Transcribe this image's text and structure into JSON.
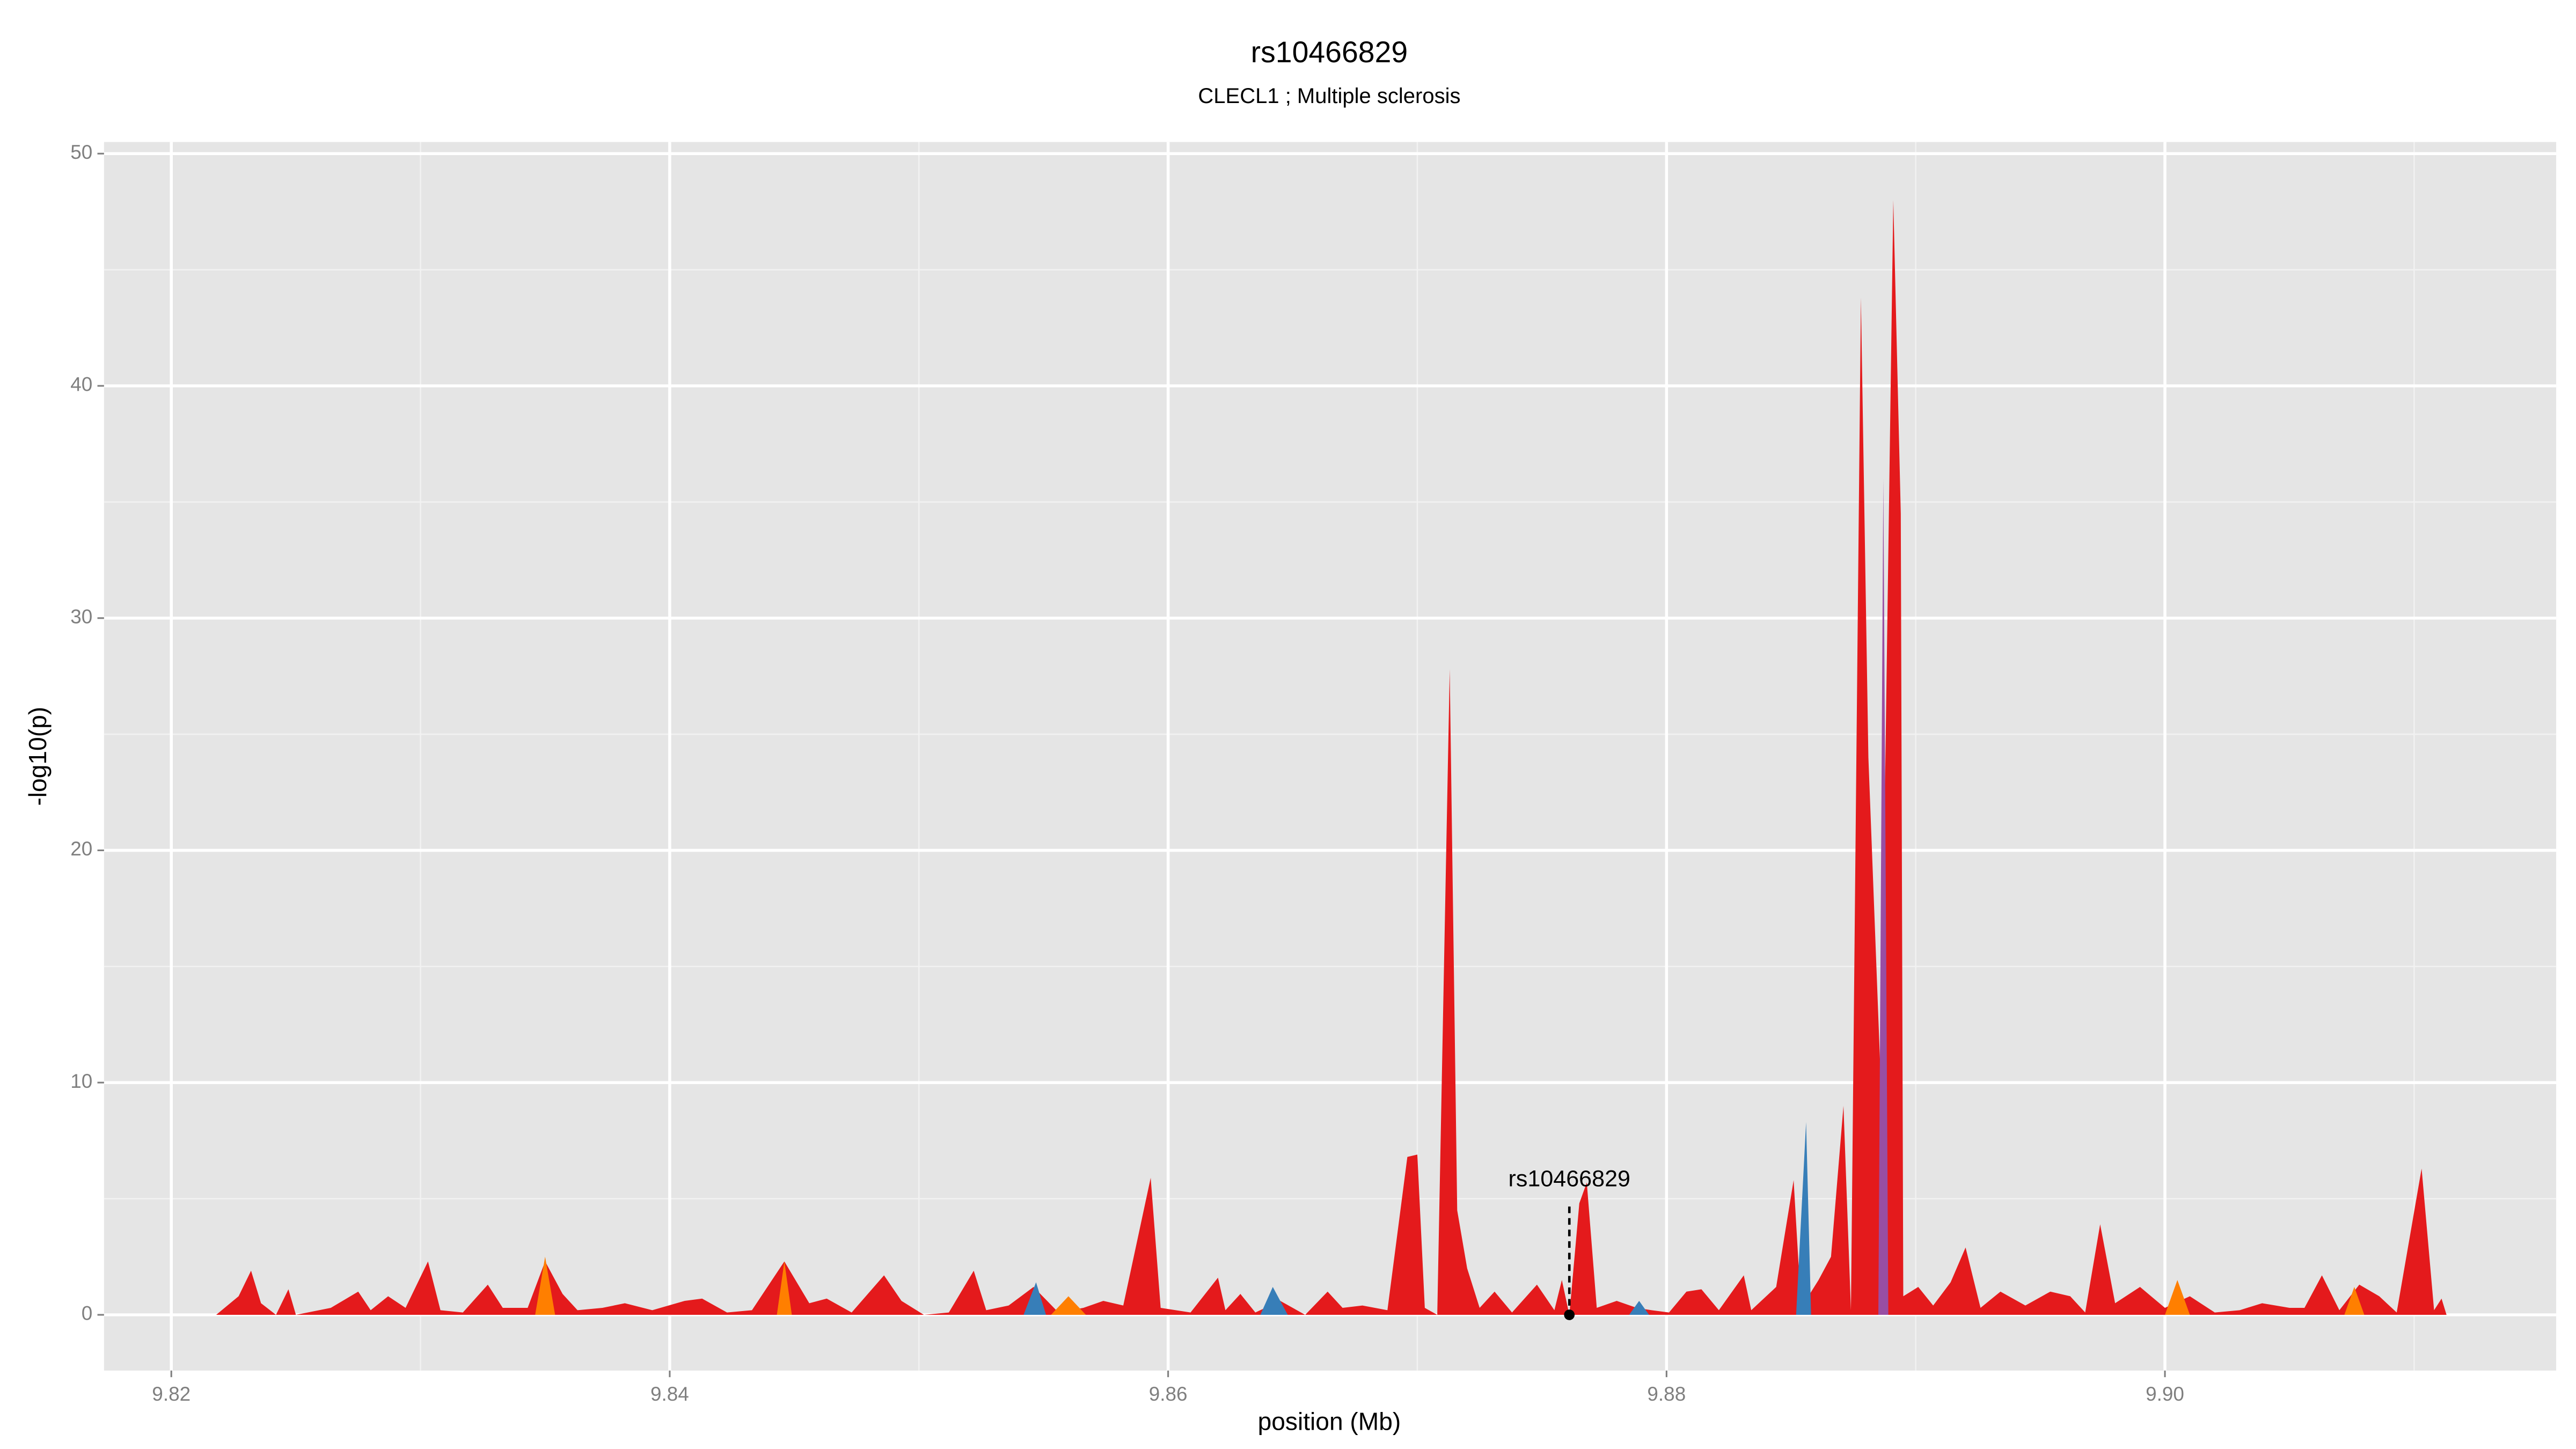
{
  "chart_data": {
    "type": "area",
    "title": "rs10466829",
    "subtitle": "CLECL1 ; Multiple sclerosis",
    "x_label": "position (Mb)",
    "y_label": "-log10(p)",
    "xlim": [
      9.8173,
      9.9157
    ],
    "ylim": [
      -2.4,
      50.5
    ],
    "xticks": [
      9.82,
      9.84,
      9.86,
      9.88,
      {
        "value": 9.9,
        "label": "9.90"
      }
    ],
    "yticks": [
      0,
      10,
      20,
      30,
      40,
      50
    ],
    "grid": true,
    "minor_grid": true,
    "series": [
      {
        "color": "#e41a1c",
        "x": [
          9.8218,
          9.8227,
          9.8232,
          9.8236,
          9.8242,
          9.8247,
          9.825,
          9.8264,
          9.8275,
          9.828,
          9.8287,
          9.8294,
          9.8303,
          9.8308,
          9.8317,
          9.8327,
          9.8333,
          9.8343,
          9.835,
          9.8357,
          9.8363,
          9.8373,
          9.8382,
          9.8393,
          9.8406,
          9.8413,
          9.8423,
          9.8433,
          9.8446,
          9.8456,
          9.8463,
          9.8473,
          9.8486,
          9.8493,
          9.8502,
          9.8512,
          9.8522,
          9.8527,
          9.8536,
          9.8546,
          9.8556,
          9.8566,
          9.8574,
          9.8582,
          9.8593,
          9.8597,
          9.8609,
          9.862,
          9.8623,
          9.8629,
          9.8635,
          9.8645,
          9.8655,
          9.8664,
          9.867,
          9.8678,
          9.8688,
          9.8696,
          9.87,
          9.8703,
          9.8708,
          9.8713,
          9.8716,
          9.872,
          9.8725,
          9.8731,
          9.8738,
          9.8748,
          9.8755,
          9.8758,
          9.8761,
          9.8765,
          9.8768,
          9.8772,
          9.878,
          9.8788,
          9.8794,
          9.8801,
          9.8808,
          9.8814,
          9.8821,
          9.8831,
          9.8834,
          9.8844,
          9.8851,
          9.8854,
          9.8861,
          9.8866,
          9.8871,
          9.8874,
          9.8878,
          9.8881,
          9.8886,
          9.8891,
          9.8894,
          9.8895,
          9.8901,
          9.8907,
          9.8914,
          9.892,
          9.8926,
          9.8934,
          9.8944,
          9.8954,
          9.8962,
          9.8968,
          9.8974,
          9.898,
          9.899,
          9.9,
          9.901,
          9.902,
          9.903,
          9.9039,
          9.905,
          9.9056,
          9.9063,
          9.907,
          9.9078,
          9.9086,
          9.9093,
          9.9103,
          9.9108,
          9.9111,
          9.9113
        ],
        "values": [
          0,
          0.8,
          1.9,
          0.5,
          0,
          1.1,
          0,
          0.3,
          1.0,
          0.2,
          0.8,
          0.3,
          2.3,
          0.2,
          0.1,
          1.3,
          0.3,
          0.3,
          2.3,
          0.9,
          0.2,
          0.3,
          0.5,
          0.2,
          0.6,
          0.7,
          0.1,
          0.2,
          2.3,
          0.5,
          0.7,
          0.1,
          1.7,
          0.6,
          0,
          0.1,
          1.9,
          0.2,
          0.4,
          1.2,
          0.1,
          0.3,
          0.6,
          0.4,
          5.9,
          0.3,
          0.1,
          1.6,
          0.2,
          0.9,
          0.1,
          0.6,
          0,
          1.0,
          0.3,
          0.4,
          0.2,
          6.8,
          6.9,
          0.3,
          0,
          27.8,
          4.5,
          2.0,
          0.3,
          1.0,
          0.1,
          1.3,
          0.2,
          1.5,
          0,
          4.8,
          5.7,
          0.3,
          0.6,
          0.3,
          0.2,
          0.1,
          1.0,
          1.1,
          0.2,
          1.7,
          0.2,
          1.2,
          5.8,
          0.3,
          1.5,
          2.5,
          9.0,
          0.2,
          43.8,
          24.0,
          10,
          48.0,
          34.5,
          0.8,
          1.2,
          0.4,
          1.4,
          2.9,
          0.3,
          1.0,
          0.4,
          1.0,
          0.8,
          0.1,
          3.9,
          0.5,
          1.2,
          0.3,
          0.8,
          0.1,
          0.2,
          0.5,
          0.3,
          0.3,
          1.7,
          0.2,
          1.3,
          0.8,
          0.1,
          6.3,
          0.2,
          0.7,
          0
        ]
      },
      {
        "color": "#ff7f00",
        "x": [
          9.8346,
          9.835,
          9.8354,
          9.8443,
          9.8446,
          9.8449,
          9.8553,
          9.856,
          9.8567,
          9.9,
          9.9005,
          9.901,
          9.9072,
          9.9076,
          9.908
        ],
        "values": [
          0,
          2.5,
          0,
          0,
          2.3,
          0,
          0,
          0.8,
          0,
          0,
          1.5,
          0,
          0,
          1.2,
          0
        ]
      },
      {
        "color": "#377eb8",
        "x": [
          9.8542,
          9.8547,
          9.8551,
          9.8637,
          9.8642,
          9.8648,
          9.8785,
          9.8789,
          9.8793,
          9.8852,
          9.8856,
          9.8858
        ],
        "values": [
          0,
          1.4,
          0,
          0,
          1.2,
          0,
          0,
          0.6,
          0,
          0,
          8.3,
          0
        ]
      },
      {
        "color": "#984ea3",
        "x": [
          9.8885,
          9.8887,
          9.8889
        ],
        "values": [
          0,
          36,
          0
        ]
      }
    ],
    "annotation": {
      "text": "rs10466829",
      "x": 9.8761,
      "y": 0,
      "label_y": 5.8
    }
  }
}
